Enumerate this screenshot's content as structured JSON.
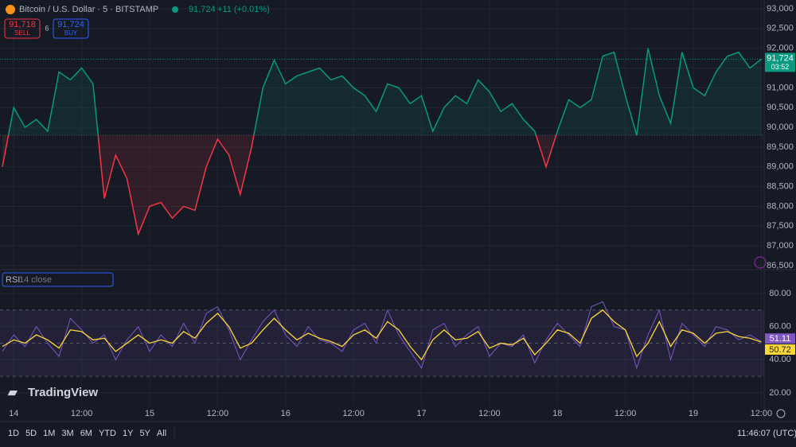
{
  "header": {
    "symbol": "Bitcoin / U.S. Dollar · 5 · BITSTAMP",
    "last": "91,724",
    "change": "+11 (+0.01%)",
    "sell_price": "91,718",
    "sell": "SELL",
    "spread": "6",
    "buy_price": "91,724",
    "buy": "BUY"
  },
  "chart_data": [
    {
      "type": "line",
      "categories": [
        null,
        "14",
        null,
        null,
        null,
        null,
        null,
        "12:00",
        null,
        null,
        null,
        null,
        null,
        "15",
        null,
        null,
        null,
        null,
        null,
        "12:00",
        null,
        null,
        null,
        null,
        null,
        "16",
        null,
        null,
        null,
        null,
        null,
        "12:00",
        null,
        null,
        null,
        null,
        null,
        "17",
        null,
        null,
        null,
        null,
        null,
        "12:00",
        null,
        null,
        null,
        null,
        null,
        "18",
        null,
        null,
        null,
        null,
        null,
        "12:00",
        null,
        null,
        null,
        null,
        null,
        "19",
        null,
        null,
        null,
        null,
        null,
        "12:00"
      ],
      "values": [
        89000,
        90500,
        90000,
        90200,
        89900,
        91400,
        91200,
        91500,
        91100,
        88200,
        89300,
        88700,
        87300,
        88000,
        88100,
        87700,
        88000,
        87900,
        89000,
        89700,
        89300,
        88300,
        89500,
        91000,
        91700,
        91100,
        91300,
        91400,
        91500,
        91200,
        91300,
        91000,
        90800,
        90400,
        91100,
        91000,
        90600,
        90800,
        89900,
        90500,
        90800,
        90600,
        91200,
        90900,
        90400,
        90600,
        90200,
        89900,
        89000,
        89900,
        90700,
        90500,
        90700,
        91800,
        91900,
        90800,
        89800,
        92000,
        90800,
        90100,
        91900,
        91000,
        90800,
        91400,
        91800,
        91900,
        91500,
        91724
      ],
      "up_color": "#089981",
      "down_color": "#f23645",
      "baseline": 89800,
      "ylim": [
        86420,
        93221
      ],
      "yticks": [
        {
          "value": 86500,
          "label": "86,500"
        },
        {
          "value": 87000,
          "label": "87,000"
        },
        {
          "value": 87500,
          "label": "87,500"
        },
        {
          "value": 88000,
          "label": "88,000"
        },
        {
          "value": 88500,
          "label": "88,500"
        },
        {
          "value": 89000,
          "label": "89,000"
        },
        {
          "value": 89500,
          "label": "89,500"
        },
        {
          "value": 90000,
          "label": "90,000"
        },
        {
          "value": 90500,
          "label": "90,500"
        },
        {
          "value": 91000,
          "label": "91,000"
        },
        {
          "value": 91500,
          "label": "91,500"
        },
        {
          "value": 92000,
          "label": "92,000"
        },
        {
          "value": 92500,
          "label": "92,500"
        },
        {
          "value": 93000,
          "label": "93,000"
        }
      ],
      "grid": true,
      "last_label": "91,724",
      "countdown": "03:52"
    },
    {
      "type": "line",
      "title": "RSI",
      "subtitle": "14 close",
      "series": [
        {
          "color": "#7e57c2",
          "values": [
            45,
            55,
            48,
            60,
            50,
            42,
            65,
            58,
            50,
            55,
            40,
            52,
            60,
            45,
            55,
            48,
            62,
            50,
            68,
            72,
            58,
            40,
            52,
            63,
            70,
            55,
            48,
            60,
            52,
            50,
            45,
            58,
            62,
            50,
            70,
            55,
            45,
            35,
            58,
            62,
            48,
            55,
            60,
            42,
            50,
            48,
            55,
            38,
            52,
            62,
            55,
            48,
            72,
            75,
            60,
            58,
            35,
            55,
            70,
            40,
            62,
            55,
            48,
            60,
            58,
            52,
            55,
            51.11
          ]
        },
        {
          "color": "#fdd835",
          "values": [
            48,
            52,
            50,
            55,
            52,
            47,
            58,
            57,
            52,
            53,
            45,
            50,
            55,
            50,
            52,
            50,
            57,
            53,
            62,
            68,
            60,
            47,
            50,
            58,
            65,
            58,
            52,
            56,
            53,
            51,
            48,
            55,
            58,
            53,
            63,
            58,
            48,
            40,
            52,
            58,
            52,
            53,
            57,
            47,
            50,
            49,
            53,
            43,
            50,
            58,
            56,
            50,
            65,
            70,
            63,
            58,
            42,
            50,
            63,
            48,
            58,
            56,
            50,
            56,
            57,
            54,
            53,
            50.72
          ]
        }
      ],
      "levels": [
        70,
        50,
        30
      ],
      "ylim": [
        12.3,
        93.9
      ],
      "yticks": [
        {
          "value": 20,
          "label": "20.00"
        },
        {
          "value": 40,
          "label": "40.00"
        },
        {
          "value": 60,
          "label": "60.00"
        },
        {
          "value": 80,
          "label": "80.00"
        }
      ]
    }
  ],
  "watermark": "TradingView",
  "toolbar": {
    "ranges": [
      "1D",
      "5D",
      "1M",
      "3M",
      "6M",
      "YTD",
      "1Y",
      "5Y",
      "All"
    ],
    "clock": "11:46:07 (UTC)"
  }
}
